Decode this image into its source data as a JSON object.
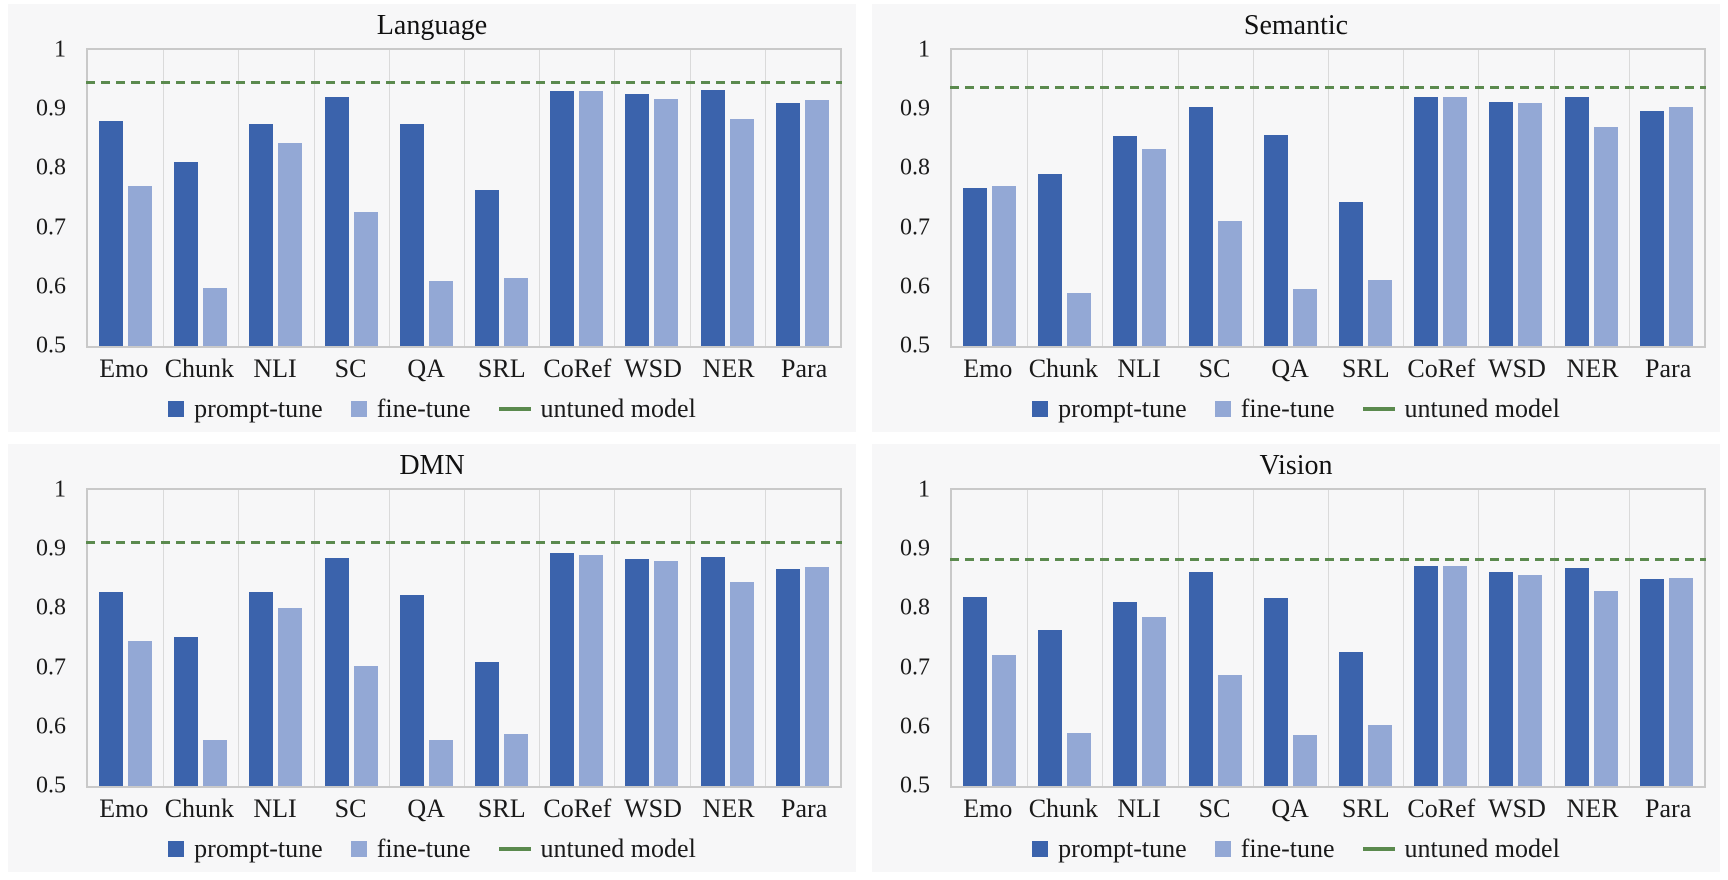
{
  "colors": {
    "prompt_tune": "#3b63ac",
    "fine_tune": "#93a8d5",
    "untuned": "#5b8a4e",
    "gridline": "#dadada",
    "plot_border": "#c9c9c9",
    "panel_bg": "#f7f7f8"
  },
  "legend": {
    "prompt_tune": "prompt-tune",
    "fine_tune": "fine-tune",
    "untuned": "untuned model"
  },
  "axis": {
    "ymin": 0.5,
    "ymax": 1.0,
    "tick_labels": [
      "1",
      "0.9",
      "0.8",
      "0.7",
      "0.6",
      "0.5"
    ]
  },
  "chart_data": [
    {
      "type": "bar",
      "title": "Language",
      "categories": [
        "Emo",
        "Chunk",
        "NLI",
        "SC",
        "QA",
        "SRL",
        "CoRef",
        "WSD",
        "NER",
        "Para"
      ],
      "series": [
        {
          "name": "prompt-tune",
          "values": [
            0.88,
            0.81,
            0.875,
            0.92,
            0.875,
            0.763,
            0.93,
            0.925,
            0.933,
            0.91
          ]
        },
        {
          "name": "fine-tune",
          "values": [
            0.77,
            0.598,
            0.843,
            0.727,
            0.61,
            0.615,
            0.93,
            0.918,
            0.883,
            0.915
          ]
        }
      ],
      "untuned_model": 0.945,
      "ylim": [
        0.5,
        1.0
      ],
      "legend_position": "bottom",
      "grid": "vertical-only"
    },
    {
      "type": "bar",
      "title": "Semantic",
      "categories": [
        "Emo",
        "Chunk",
        "NLI",
        "SC",
        "QA",
        "SRL",
        "CoRef",
        "WSD",
        "NER",
        "Para"
      ],
      "series": [
        {
          "name": "prompt-tune",
          "values": [
            0.767,
            0.79,
            0.855,
            0.903,
            0.857,
            0.744,
            0.92,
            0.912,
            0.92,
            0.897
          ]
        },
        {
          "name": "fine-tune",
          "values": [
            0.77,
            0.59,
            0.832,
            0.712,
            0.597,
            0.612,
            0.921,
            0.91,
            0.87,
            0.903
          ]
        }
      ],
      "untuned_model": 0.935,
      "ylim": [
        0.5,
        1.0
      ],
      "legend_position": "bottom",
      "grid": "vertical-only"
    },
    {
      "type": "bar",
      "title": "DMN",
      "categories": [
        "Emo",
        "Chunk",
        "NLI",
        "SC",
        "QA",
        "SRL",
        "CoRef",
        "WSD",
        "NER",
        "Para"
      ],
      "series": [
        {
          "name": "prompt-tune",
          "values": [
            0.827,
            0.752,
            0.827,
            0.886,
            0.822,
            0.709,
            0.893,
            0.883,
            0.887,
            0.866
          ]
        },
        {
          "name": "fine-tune",
          "values": [
            0.745,
            0.578,
            0.8,
            0.702,
            0.578,
            0.588,
            0.891,
            0.88,
            0.845,
            0.87
          ]
        }
      ],
      "untuned_model": 0.911,
      "ylim": [
        0.5,
        1.0
      ],
      "legend_position": "bottom",
      "grid": "vertical-only"
    },
    {
      "type": "bar",
      "title": "Vision",
      "categories": [
        "Emo",
        "Chunk",
        "NLI",
        "SC",
        "QA",
        "SRL",
        "CoRef",
        "WSD",
        "NER",
        "Para"
      ],
      "series": [
        {
          "name": "prompt-tune",
          "values": [
            0.82,
            0.764,
            0.81,
            0.862,
            0.817,
            0.727,
            0.872,
            0.861,
            0.868,
            0.849
          ]
        },
        {
          "name": "fine-tune",
          "values": [
            0.722,
            0.59,
            0.786,
            0.688,
            0.587,
            0.603,
            0.871,
            0.856,
            0.83,
            0.852
          ]
        }
      ],
      "untuned_model": 0.881,
      "ylim": [
        0.5,
        1.0
      ],
      "legend_position": "bottom",
      "grid": "vertical-only"
    }
  ]
}
